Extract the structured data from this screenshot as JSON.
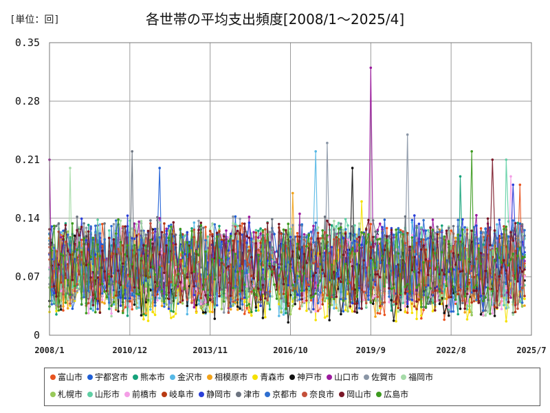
{
  "unit_label": "[単位：回]",
  "title": "各世帯の平均支出頻度[2008/1～2025/4]",
  "chart_data": {
    "type": "line",
    "title": "各世帯の平均支出頻度[2008/1～2025/4]",
    "xlabel": "",
    "ylabel": "[単位：回]",
    "ylim": [
      0,
      0.35
    ],
    "y_ticks": [
      "0",
      "0.07",
      "0.14",
      "0.21",
      "0.28",
      "0.35"
    ],
    "y_tick_values": [
      0,
      0.07,
      0.14,
      0.21,
      0.28,
      0.35
    ],
    "x_ticks": [
      "2008/1",
      "2010/12",
      "2013/11",
      "2016/10",
      "2019/9",
      "2022/8",
      "2025/7"
    ],
    "x_range": [
      "2008/1",
      "2025/7"
    ],
    "data_range": [
      "2008/1",
      "2025/4"
    ],
    "grid": true,
    "legend_position": "bottom",
    "peak_annotations": [
      {
        "series": "山口市",
        "month": "2019/9",
        "value": 0.32
      },
      {
        "series": "佐賀市",
        "month": "2021/1",
        "value": 0.24
      }
    ],
    "series": [
      {
        "name": "富山市",
        "color": "#e8531f",
        "base": 0.075,
        "spread": 0.05,
        "peaks": [
          {
            "month": "2025/2",
            "value": 0.18
          }
        ]
      },
      {
        "name": "宇都宮市",
        "color": "#1f5fd6",
        "base": 0.085,
        "spread": 0.05,
        "peaks": [
          {
            "month": "2012/1",
            "value": 0.2
          }
        ]
      },
      {
        "name": "熊本市",
        "color": "#15a27a",
        "base": 0.08,
        "spread": 0.05,
        "peaks": [
          {
            "month": "2022/12",
            "value": 0.19
          }
        ]
      },
      {
        "name": "金沢市",
        "color": "#56b8e6",
        "base": 0.08,
        "spread": 0.05,
        "peaks": [
          {
            "month": "2017/9",
            "value": 0.22
          }
        ]
      },
      {
        "name": "相模原市",
        "color": "#f2a31a",
        "base": 0.075,
        "spread": 0.045,
        "peaks": [
          {
            "month": "2016/11",
            "value": 0.17
          }
        ]
      },
      {
        "name": "青森市",
        "color": "#f5e100",
        "base": 0.065,
        "spread": 0.045,
        "peaks": [
          {
            "month": "2019/5",
            "value": 0.16
          }
        ]
      },
      {
        "name": "神戸市",
        "color": "#111111",
        "base": 0.07,
        "spread": 0.05,
        "peaks": [
          {
            "month": "2019/1",
            "value": 0.2
          }
        ]
      },
      {
        "name": "山口市",
        "color": "#9c1a9e",
        "base": 0.09,
        "spread": 0.05,
        "peaks": [
          {
            "month": "2019/9",
            "value": 0.32
          },
          {
            "month": "2008/1",
            "value": 0.21
          }
        ]
      },
      {
        "name": "佐賀市",
        "color": "#8a96a6",
        "base": 0.085,
        "spread": 0.05,
        "peaks": [
          {
            "month": "2021/1",
            "value": 0.24
          },
          {
            "month": "2018/2",
            "value": 0.23
          }
        ]
      },
      {
        "name": "福岡市",
        "color": "#a6dba8",
        "base": 0.08,
        "spread": 0.05,
        "peaks": [
          {
            "month": "2008/10",
            "value": 0.2
          }
        ]
      },
      {
        "name": "札幌市",
        "color": "#98c95a",
        "base": 0.075,
        "spread": 0.045,
        "peaks": []
      },
      {
        "name": "山形市",
        "color": "#5fcfa4",
        "base": 0.085,
        "spread": 0.05,
        "peaks": [
          {
            "month": "2024/8",
            "value": 0.21
          }
        ]
      },
      {
        "name": "前橋市",
        "color": "#f49ee6",
        "base": 0.075,
        "spread": 0.045,
        "peaks": [
          {
            "month": "2024/10",
            "value": 0.19
          }
        ]
      },
      {
        "name": "岐阜市",
        "color": "#b83a12",
        "base": 0.08,
        "spread": 0.045,
        "peaks": []
      },
      {
        "name": "静岡市",
        "color": "#2a3fd8",
        "base": 0.085,
        "spread": 0.05,
        "peaks": [
          {
            "month": "2024/11",
            "value": 0.18
          }
        ]
      },
      {
        "name": "津市",
        "color": "#6c7480",
        "base": 0.085,
        "spread": 0.05,
        "peaks": [
          {
            "month": "2011/1",
            "value": 0.22
          }
        ]
      },
      {
        "name": "京都市",
        "color": "#2f6fd0",
        "base": 0.085,
        "spread": 0.05,
        "peaks": []
      },
      {
        "name": "奈良市",
        "color": "#c4503a",
        "base": 0.08,
        "spread": 0.045,
        "peaks": []
      },
      {
        "name": "岡山市",
        "color": "#7a1626",
        "base": 0.085,
        "spread": 0.05,
        "peaks": [
          {
            "month": "2024/2",
            "value": 0.21
          }
        ]
      },
      {
        "name": "広島市",
        "color": "#3d9a1f",
        "base": 0.08,
        "spread": 0.05,
        "peaks": [
          {
            "month": "2023/5",
            "value": 0.22
          }
        ]
      }
    ]
  },
  "legend_rows": [
    [
      "富山市",
      "宇都宮市",
      "熊本市",
      "金沢市",
      "相模原市",
      "青森市",
      "神戸市",
      "山口市",
      "佐賀市",
      "福岡市"
    ],
    [
      "札幌市",
      "山形市",
      "前橋市",
      "岐阜市",
      "静岡市",
      "津市",
      "京都市",
      "奈良市",
      "岡山市",
      "広島市"
    ]
  ]
}
